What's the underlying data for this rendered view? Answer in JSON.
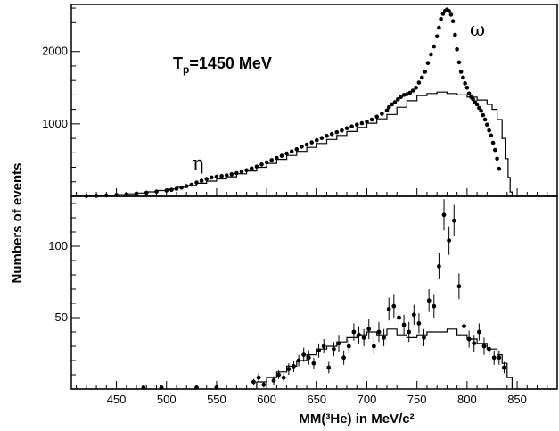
{
  "chart_data": [
    {
      "panel": "top",
      "type": "scatter",
      "ylabel": "Numbers of events",
      "xlim": [
        405,
        890
      ],
      "ylim": [
        0,
        2650
      ],
      "x_ticks": [
        450,
        500,
        550,
        600,
        650,
        700,
        750,
        800,
        850
      ],
      "y_ticks": [
        1000,
        2000
      ],
      "y_tick_labels": [
        "1000",
        "2000"
      ],
      "grid": false,
      "annotations": [
        {
          "id": "tp",
          "main": "T",
          "sub": "p",
          "rest": "=1450 MeV",
          "x": 535,
          "y": 1960
        },
        {
          "id": "eta",
          "text": "η",
          "x": 527,
          "y": 400
        },
        {
          "id": "omega",
          "text": "ω",
          "x": 797,
          "y": 2430
        }
      ],
      "series": [
        {
          "kind": "points",
          "x": [
            420,
            430,
            440,
            450,
            460,
            470,
            480,
            490,
            500,
            505,
            510,
            515,
            520,
            525,
            530,
            535,
            540,
            545,
            550,
            555,
            560,
            565,
            570,
            575,
            580,
            585,
            590,
            595,
            600,
            605,
            610,
            615,
            620,
            625,
            630,
            635,
            640,
            645,
            650,
            655,
            660,
            665,
            670,
            675,
            680,
            685,
            690,
            695,
            700,
            705,
            710,
            715,
            720,
            722,
            725,
            728,
            731,
            734,
            737,
            740,
            743,
            746,
            749,
            752,
            755,
            758,
            761,
            764,
            767,
            770,
            772,
            774,
            776,
            778,
            780,
            782,
            784,
            786,
            788,
            790,
            792,
            794,
            796,
            798,
            800,
            802,
            804,
            806,
            808,
            810,
            812,
            814,
            816,
            818,
            820,
            822,
            824,
            826,
            828,
            830,
            832
          ],
          "y": [
            5,
            8,
            12,
            20,
            28,
            38,
            50,
            65,
            80,
            90,
            105,
            120,
            140,
            160,
            190,
            215,
            240,
            260,
            270,
            280,
            290,
            305,
            320,
            340,
            360,
            385,
            410,
            440,
            470,
            500,
            530,
            560,
            590,
            620,
            650,
            685,
            715,
            745,
            775,
            805,
            835,
            860,
            885,
            910,
            940,
            965,
            990,
            1010,
            1030,
            1060,
            1100,
            1140,
            1185,
            1230,
            1270,
            1300,
            1340,
            1370,
            1400,
            1410,
            1430,
            1460,
            1500,
            1570,
            1640,
            1720,
            1840,
            1960,
            2070,
            2210,
            2330,
            2450,
            2520,
            2560,
            2580,
            2560,
            2510,
            2420,
            2230,
            2030,
            1850,
            1720,
            1640,
            1560,
            1500,
            1420,
            1370,
            1340,
            1300,
            1270,
            1220,
            1180,
            1120,
            1060,
            990,
            910,
            840,
            740,
            640,
            520,
            380
          ]
        },
        {
          "kind": "step",
          "x": [
            405,
            420,
            430,
            440,
            450,
            460,
            470,
            480,
            490,
            500,
            510,
            520,
            530,
            540,
            550,
            560,
            570,
            580,
            590,
            600,
            610,
            620,
            630,
            640,
            650,
            660,
            670,
            680,
            690,
            700,
            710,
            720,
            730,
            740,
            750,
            760,
            770,
            780,
            790,
            800,
            810,
            820,
            825,
            830,
            835,
            838,
            841,
            843,
            845,
            890
          ],
          "y": [
            3,
            6,
            10,
            16,
            24,
            34,
            46,
            62,
            80,
            100,
            125,
            150,
            180,
            210,
            240,
            270,
            310,
            350,
            400,
            455,
            510,
            565,
            620,
            675,
            730,
            785,
            840,
            895,
            950,
            1010,
            1070,
            1130,
            1230,
            1320,
            1390,
            1420,
            1440,
            1420,
            1400,
            1370,
            1330,
            1270,
            1200,
            1060,
            800,
            520,
            260,
            60,
            0,
            0
          ]
        }
      ]
    },
    {
      "panel": "bottom",
      "type": "scatter",
      "xlabel": "MM(³He) in MeV/c²",
      "xlim": [
        405,
        890
      ],
      "ylim": [
        0,
        135
      ],
      "x_ticks": [
        450,
        500,
        550,
        600,
        650,
        700,
        750,
        800,
        850
      ],
      "x_tick_labels": [
        "450",
        "500",
        "550",
        "600",
        "650",
        "700",
        "750",
        "800",
        "850"
      ],
      "y_ticks": [
        50,
        100
      ],
      "y_tick_labels": [
        "50",
        "100"
      ],
      "grid": false,
      "series": [
        {
          "kind": "errorbar_points",
          "x": [
            477,
            495,
            530,
            550,
            587,
            592,
            597,
            607,
            612,
            617,
            622,
            627,
            632,
            637,
            642,
            647,
            652,
            657,
            662,
            667,
            672,
            677,
            682,
            687,
            692,
            697,
            702,
            707,
            712,
            717,
            722,
            727,
            732,
            737,
            742,
            747,
            752,
            757,
            762,
            767,
            772,
            777,
            782,
            787,
            792,
            797,
            802,
            807,
            812,
            817,
            822,
            827,
            832,
            837
          ],
          "y": [
            1,
            1,
            1,
            1,
            5,
            8,
            3,
            6,
            10,
            8,
            14,
            16,
            20,
            24,
            22,
            18,
            27,
            30,
            15,
            28,
            32,
            22,
            30,
            40,
            38,
            36,
            42,
            30,
            40,
            36,
            56,
            58,
            50,
            45,
            40,
            52,
            46,
            36,
            62,
            58,
            86,
            122,
            104,
            118,
            72,
            44,
            35,
            32,
            40,
            30,
            28,
            22,
            22,
            15
          ],
          "err": [
            1,
            1,
            1,
            1,
            2,
            3,
            2,
            3,
            3,
            3,
            4,
            4,
            4,
            5,
            5,
            4,
            5,
            5,
            4,
            5,
            6,
            5,
            5,
            6,
            6,
            6,
            7,
            6,
            7,
            6,
            8,
            8,
            7,
            7,
            7,
            7,
            7,
            6,
            8,
            8,
            9,
            11,
            10,
            11,
            9,
            7,
            6,
            6,
            6,
            6,
            5,
            5,
            5,
            4
          ]
        },
        {
          "kind": "step",
          "x": [
            405,
            580,
            590,
            600,
            610,
            620,
            630,
            640,
            650,
            660,
            670,
            680,
            690,
            700,
            710,
            720,
            730,
            740,
            750,
            760,
            770,
            780,
            790,
            800,
            810,
            820,
            830,
            835,
            840,
            845,
            890
          ],
          "y": [
            0,
            0,
            5,
            8,
            12,
            16,
            20,
            24,
            28,
            30,
            33,
            36,
            38,
            40,
            38,
            42,
            38,
            36,
            38,
            40,
            40,
            42,
            38,
            35,
            32,
            28,
            24,
            18,
            8,
            0,
            0
          ]
        }
      ]
    }
  ]
}
